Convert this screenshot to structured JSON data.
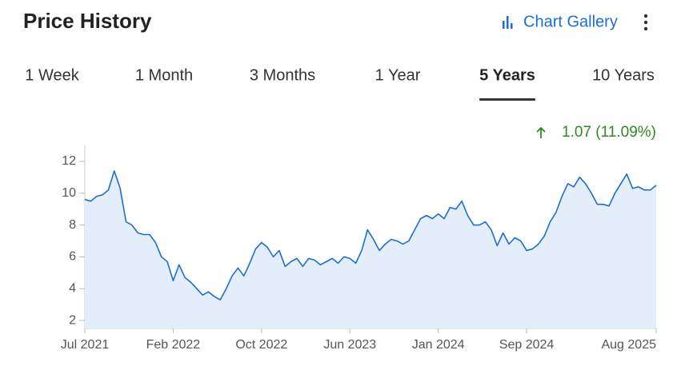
{
  "header": {
    "title": "Price History",
    "link": "Chart Gallery"
  },
  "tabs": [
    "1 Week",
    "1 Month",
    "3 Months",
    "1 Year",
    "5 Years",
    "10 Years"
  ],
  "active_tab": "5 Years",
  "change": "1.07 (11.09%)",
  "chart_data": {
    "type": "area",
    "categories": [
      "Jul 2021",
      null,
      null,
      null,
      null,
      null,
      null,
      null,
      null,
      null,
      null,
      null,
      null,
      null,
      null,
      "Feb 2022",
      null,
      null,
      null,
      null,
      null,
      null,
      null,
      null,
      null,
      null,
      null,
      null,
      null,
      null,
      "Oct 2022",
      null,
      null,
      null,
      null,
      null,
      null,
      null,
      null,
      null,
      null,
      null,
      null,
      null,
      null,
      "Jun 2023",
      null,
      null,
      null,
      null,
      null,
      null,
      null,
      null,
      null,
      null,
      null,
      null,
      null,
      null,
      "Jan 2024",
      null,
      null,
      null,
      null,
      null,
      null,
      null,
      null,
      null,
      null,
      null,
      null,
      null,
      null,
      "Sep 2024",
      null,
      null,
      null,
      null,
      null,
      null,
      null,
      null,
      null,
      null,
      null,
      null,
      null,
      null,
      null,
      null,
      null,
      null,
      null,
      null,
      null,
      "Aug 2025"
    ],
    "values": [
      9.6,
      9.5,
      9.8,
      9.9,
      10.2,
      11.4,
      10.3,
      8.2,
      8.0,
      7.5,
      7.4,
      7.4,
      6.9,
      6.0,
      5.7,
      4.5,
      5.5,
      4.7,
      4.4,
      4.0,
      3.6,
      3.8,
      3.5,
      3.3,
      4.0,
      4.8,
      5.3,
      4.8,
      5.6,
      6.5,
      6.9,
      6.6,
      6.0,
      6.4,
      5.4,
      5.7,
      5.9,
      5.4,
      5.9,
      5.8,
      5.5,
      5.7,
      5.9,
      5.6,
      6.0,
      5.9,
      5.6,
      6.4,
      7.7,
      7.1,
      6.4,
      6.8,
      7.1,
      7.0,
      6.8,
      7.0,
      7.7,
      8.4,
      8.6,
      8.4,
      8.7,
      8.4,
      9.1,
      9.0,
      9.5,
      8.6,
      8.0,
      8.0,
      8.2,
      7.7,
      6.7,
      7.5,
      6.8,
      7.2,
      7.0,
      6.4,
      6.5,
      6.8,
      7.3,
      8.2,
      8.8,
      9.8,
      10.6,
      10.4,
      11.0,
      10.6,
      10.0,
      9.3,
      9.3,
      9.2,
      10.0,
      10.6,
      11.2,
      10.3,
      10.4,
      10.2,
      10.2,
      10.5
    ],
    "color": "#1b6fd1",
    "fill": "#e3eefa",
    "ylim": [
      1.5,
      13
    ],
    "yticks": [
      2,
      4,
      6,
      8,
      10,
      12
    ]
  }
}
